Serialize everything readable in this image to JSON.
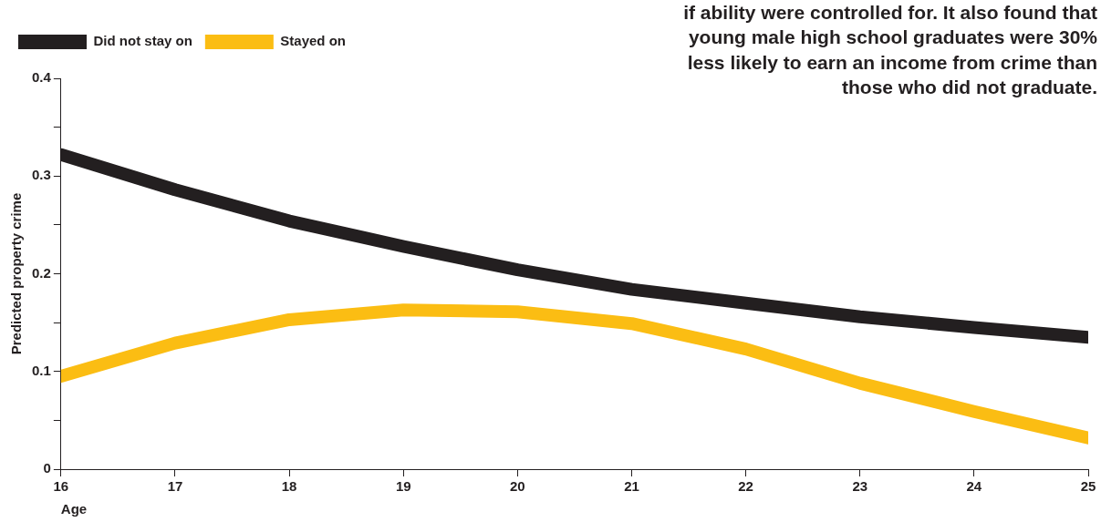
{
  "chart_data": {
    "type": "line",
    "xlabel": "Age",
    "ylabel": "Predicted property crime",
    "annotations": [
      "if ability were controlled for. It also found that young male high school graduates were 30% less likely to earn an income from crime than those who did not graduate."
    ],
    "x": [
      16,
      17,
      18,
      19,
      20,
      21,
      22,
      23,
      24,
      25
    ],
    "series": [
      {
        "name": "Did not stay on",
        "color": "#231f20",
        "values": [
          0.322,
          0.286,
          0.254,
          0.228,
          0.204,
          0.184,
          0.17,
          0.156,
          0.145,
          0.135
        ]
      },
      {
        "name": "Stayed on",
        "color": "#fbbd13",
        "values": [
          0.095,
          0.129,
          0.153,
          0.163,
          0.161,
          0.149,
          0.123,
          0.088,
          0.059,
          0.032
        ]
      }
    ],
    "xlim": [
      16,
      25
    ],
    "xticks": [
      16,
      17,
      18,
      19,
      20,
      21,
      22,
      23,
      24,
      25
    ],
    "ylim": [
      0,
      0.4
    ],
    "yticks": [
      0,
      {
        "value": 0.05,
        "label": null
      },
      0.1,
      {
        "value": 0.15,
        "label": null
      },
      0.2,
      {
        "value": 0.25,
        "label": null
      },
      0.3,
      {
        "value": 0.35,
        "label": null
      },
      0.4
    ],
    "grid": false,
    "legend": "top left",
    "marker": "none",
    "line_style": "solid"
  }
}
